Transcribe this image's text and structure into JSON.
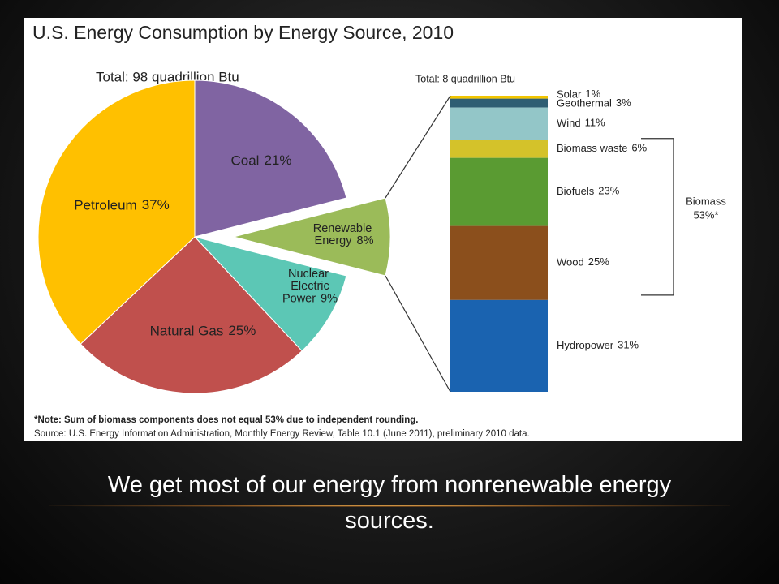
{
  "chart_data": [
    {
      "type": "pie",
      "title": "U.S. Energy Consumption by Energy Source, 2010",
      "subtitle": "Total:  98 quadrillion Btu",
      "categories": [
        "Coal",
        "Renewable Energy",
        "Nuclear Electric Power",
        "Natural Gas",
        "Petroleum"
      ],
      "values": [
        21,
        8,
        9,
        25,
        37
      ],
      "value_labels": [
        "21%",
        "8%",
        "9%",
        "25%",
        "37%"
      ],
      "colors": [
        "#8064a2",
        "#9bbb59",
        "#5cc7b5",
        "#c0504d",
        "#ffc000"
      ]
    },
    {
      "type": "stacked-bar",
      "subtitle": "Total:  8 quadrillion Btu",
      "categories": [
        "Solar",
        "Geothermal",
        "Wind",
        "Biomass waste",
        "Biofuels",
        "Wood",
        "Hydropower"
      ],
      "values": [
        1,
        3,
        11,
        6,
        23,
        25,
        31
      ],
      "value_labels": [
        "1%",
        "3%",
        "11%",
        "6%",
        "23%",
        "25%",
        "31%"
      ],
      "colors": [
        "#f2c500",
        "#2e5e73",
        "#93c6c8",
        "#d4c22a",
        "#5a9b32",
        "#8b4f1c",
        "#1a63b0"
      ],
      "group": {
        "name": "Biomass",
        "value": 53,
        "value_label": "53%*"
      },
      "notes": [
        "*Note: Sum of biomass components does not equal 53% due to independent rounding.",
        "Source: U.S. Energy Information Administration, Monthly Energy Review, Table 10.1 (June 2011), preliminary 2010 data."
      ]
    }
  ],
  "caption": "We get most of our energy from nonrenewable energy sources."
}
